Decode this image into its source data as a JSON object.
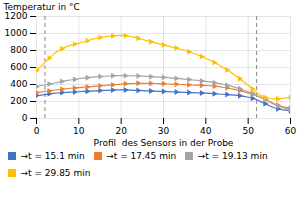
{
  "chart_data": {
    "type": "line",
    "xlabel": "Profil  des Sensors in der Probe",
    "ylabel": "Temperatur in °C",
    "xlim": [
      0,
      60
    ],
    "ylim": [
      0,
      1200
    ],
    "xticks": [
      0,
      10,
      20,
      30,
      40,
      50,
      60
    ],
    "yticks": [
      0,
      200,
      400,
      600,
      800,
      1000,
      1200
    ],
    "grid": true,
    "legend": "bottom",
    "vlines": [
      2,
      52
    ],
    "x": [
      0,
      1,
      2,
      3,
      4,
      5,
      6,
      7,
      8,
      9,
      10,
      11,
      12,
      13,
      14,
      15,
      16,
      17,
      18,
      19,
      20,
      21,
      22,
      23,
      24,
      25,
      26,
      27,
      28,
      29,
      30,
      31,
      32,
      33,
      34,
      35,
      36,
      37,
      38,
      39,
      40,
      41,
      42,
      43,
      44,
      45,
      46,
      47,
      48,
      49,
      50,
      51,
      52,
      53,
      54,
      55,
      56,
      57,
      58,
      59,
      60
    ],
    "series": [
      {
        "name": "→t = 15.1 min",
        "color": "#4472C4",
        "marker": "triangle-right",
        "values": [
          270,
          275,
          280,
          290,
          295,
          300,
          305,
          308,
          310,
          312,
          315,
          318,
          320,
          323,
          325,
          328,
          330,
          332,
          334,
          336,
          338,
          336,
          334,
          332,
          330,
          328,
          326,
          324,
          322,
          320,
          318,
          316,
          314,
          312,
          310,
          308,
          306,
          304,
          302,
          300,
          298,
          295,
          292,
          288,
          285,
          282,
          278,
          274,
          268,
          260,
          250,
          238,
          220,
          198,
          175,
          150,
          130,
          115,
          105,
          98,
          90
        ]
      },
      {
        "name": "→t = 17.45 min",
        "color": "#ED7D31",
        "marker": "triangle-right",
        "values": [
          305,
          310,
          318,
          325,
          332,
          338,
          344,
          350,
          356,
          360,
          364,
          368,
          372,
          376,
          380,
          384,
          388,
          392,
          396,
          400,
          404,
          408,
          410,
          412,
          414,
          415,
          414,
          413,
          412,
          410,
          408,
          406,
          404,
          402,
          400,
          398,
          396,
          394,
          392,
          390,
          388,
          385,
          380,
          375,
          368,
          360,
          350,
          340,
          328,
          315,
          300,
          285,
          268,
          248,
          225,
          200,
          175,
          155,
          140,
          130,
          120
        ]
      },
      {
        "name": "→t = 19.13 min",
        "color": "#A5A5A5",
        "marker": "triangle-right",
        "values": [
          375,
          385,
          395,
          405,
          415,
          425,
          435,
          445,
          453,
          460,
          468,
          474,
          480,
          486,
          490,
          494,
          497,
          500,
          502,
          504,
          505,
          504,
          503,
          502,
          500,
          498,
          496,
          493,
          490,
          487,
          484,
          480,
          476,
          472,
          468,
          463,
          458,
          453,
          448,
          442,
          436,
          430,
          422,
          413,
          403,
          392,
          380,
          366,
          350,
          333,
          315,
          295,
          272,
          248,
          222,
          195,
          170,
          148,
          132,
          120,
          110
        ]
      },
      {
        "name": "→t = 29.85 min",
        "color": "#FFC000",
        "marker": "triangle-right",
        "values": [
          565,
          610,
          660,
          710,
          755,
          793,
          820,
          845,
          862,
          875,
          887,
          900,
          915,
          930,
          942,
          952,
          960,
          967,
          972,
          976,
          978,
          975,
          968,
          958,
          945,
          930,
          916,
          902,
          890,
          878,
          866,
          854,
          840,
          828,
          815,
          800,
          785,
          768,
          750,
          730,
          708,
          685,
          660,
          632,
          602,
          572,
          540,
          505,
          468,
          430,
          390,
          348,
          305,
          272,
          248,
          235,
          230,
          230,
          238,
          243,
          248
        ]
      }
    ]
  }
}
